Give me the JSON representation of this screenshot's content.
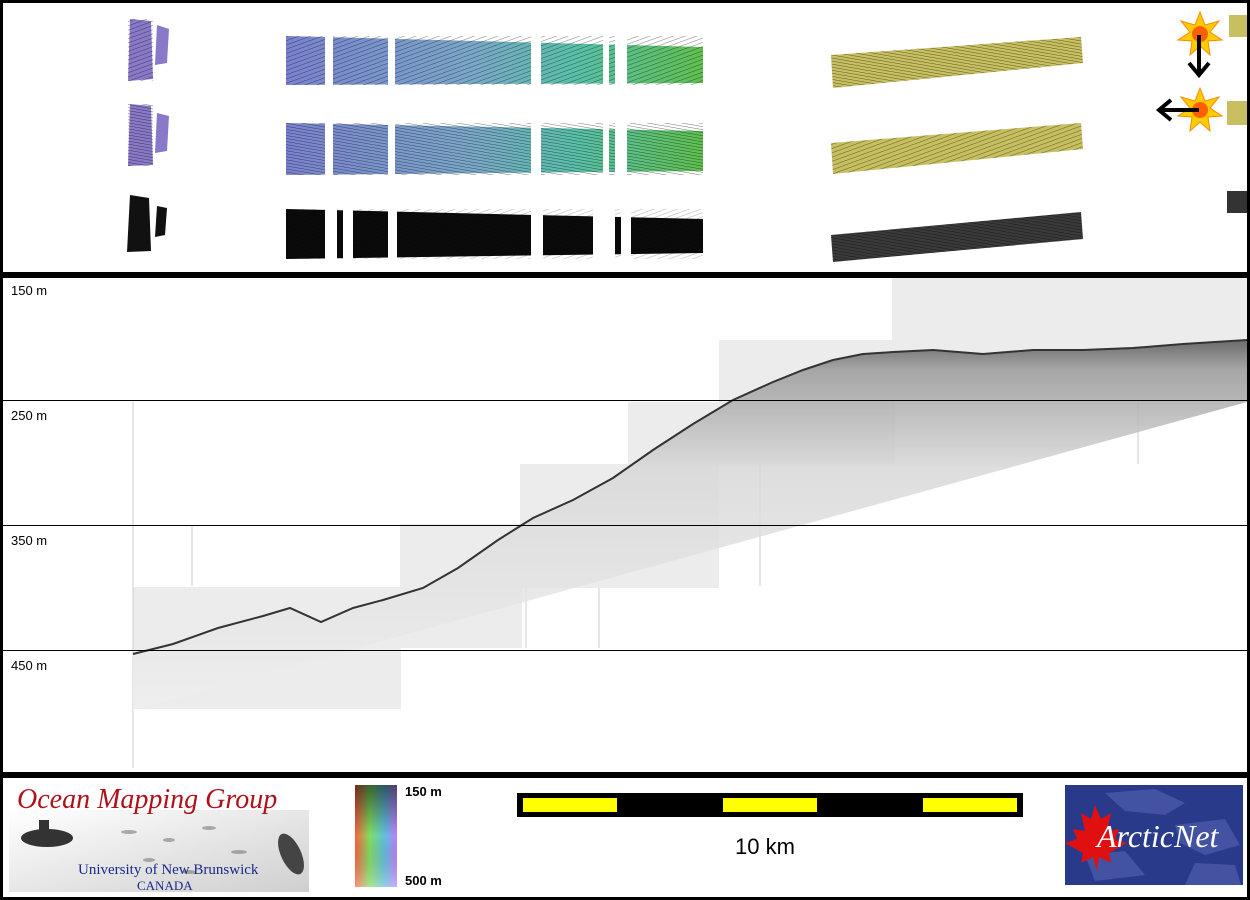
{
  "depth_axis": {
    "labels": [
      "150 m",
      "250 m",
      "350 m",
      "450 m"
    ]
  },
  "colorbar": {
    "top_label": "150 m",
    "bottom_label": "500 m"
  },
  "scalebar": {
    "label": "10 km",
    "colors": {
      "fill": "#ffff00",
      "dark": "#000000"
    }
  },
  "logo_omg": {
    "title": "Ocean Mapping Group",
    "university": "University of New Brunswick",
    "country": "CANADA"
  },
  "logo_arcticnet": {
    "text": "ArcticNet"
  },
  "lighting_icons": [
    {
      "name": "sun-icon",
      "arrow": "down-arrow-icon"
    },
    {
      "name": "sun-icon",
      "arrow": "left-arrow-icon"
    }
  ],
  "colors": {
    "strip_purple": "#8a7ac8",
    "strip_blue": "#7a8ad0",
    "strip_teal": "#5ab8b0",
    "strip_green": "#6ac060",
    "strip_yellow": "#c8c060",
    "omg_red": "#b0101a",
    "omg_blue": "#1a2a8a",
    "arcticnet_blue": "#2a3a8a"
  }
}
